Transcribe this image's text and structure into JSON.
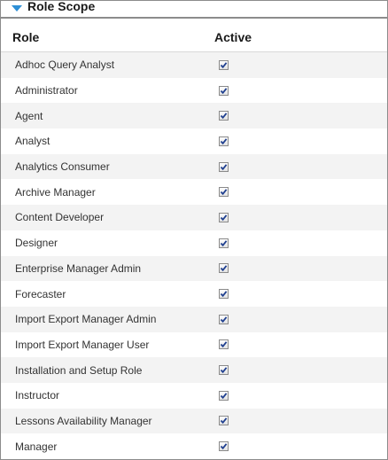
{
  "panel": {
    "title": "Role Scope",
    "icon": "caret-down-icon",
    "accent_color": "#2e8fd6"
  },
  "table": {
    "headers": {
      "role": "Role",
      "active": "Active"
    },
    "rows": [
      {
        "role": "Adhoc Query Analyst",
        "active": true
      },
      {
        "role": "Administrator",
        "active": true
      },
      {
        "role": "Agent",
        "active": true
      },
      {
        "role": "Analyst",
        "active": true
      },
      {
        "role": "Analytics Consumer",
        "active": true
      },
      {
        "role": "Archive Manager",
        "active": true
      },
      {
        "role": "Content Developer",
        "active": true
      },
      {
        "role": "Designer",
        "active": true
      },
      {
        "role": "Enterprise Manager Admin",
        "active": true
      },
      {
        "role": "Forecaster",
        "active": true
      },
      {
        "role": "Import Export Manager Admin",
        "active": true
      },
      {
        "role": "Import Export Manager User",
        "active": true
      },
      {
        "role": "Installation and Setup Role",
        "active": true
      },
      {
        "role": "Instructor",
        "active": true
      },
      {
        "role": "Lessons Availability Manager",
        "active": true
      },
      {
        "role": "Manager",
        "active": true
      }
    ]
  }
}
